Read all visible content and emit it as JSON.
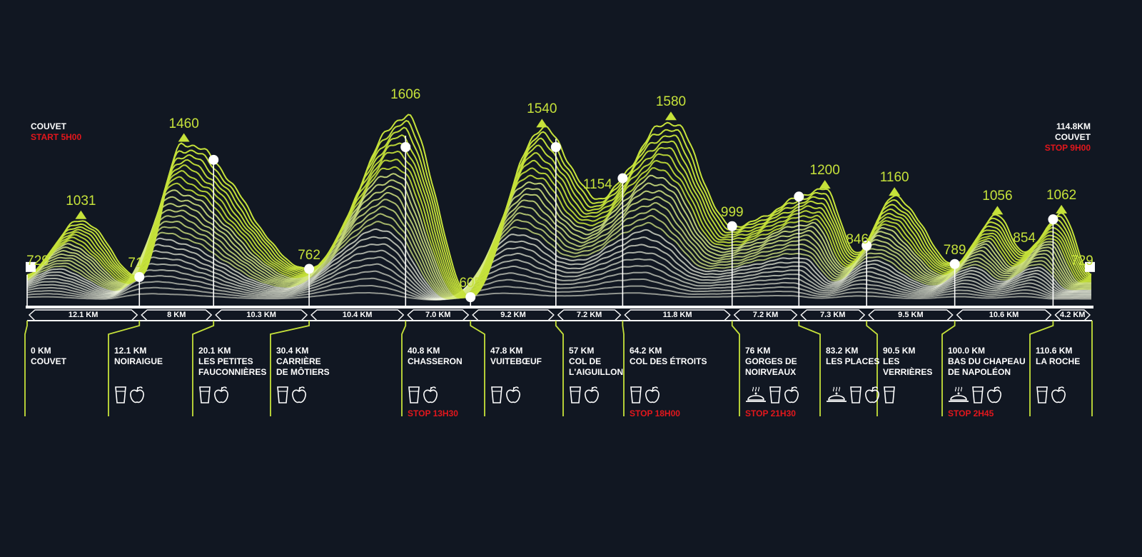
{
  "colors": {
    "background": "#111722",
    "accent": "#c6e23a",
    "line": "#ffffff",
    "stop": "#e3171c"
  },
  "start": {
    "location": "COUVET",
    "time": "START 5H00"
  },
  "finish": {
    "distance": "114.8KM",
    "location": "COUVET",
    "time": "STOP 9H00"
  },
  "chart_data": {
    "type": "area",
    "x_unit": "km",
    "y_unit": "m",
    "peaks": [
      {
        "km": 0.0,
        "elev": 729,
        "label": "729"
      },
      {
        "km": 5.8,
        "elev": 1031,
        "label": "1031"
      },
      {
        "km": 12.1,
        "elev": 717,
        "label": "717"
      },
      {
        "km": 16.9,
        "elev": 1460,
        "label": "1460"
      },
      {
        "km": 30.4,
        "elev": 762,
        "label": "762"
      },
      {
        "km": 40.8,
        "elev": 1606,
        "label": "1606"
      },
      {
        "km": 47.8,
        "elev": 605,
        "label": "605"
      },
      {
        "km": 55.5,
        "elev": 1540,
        "label": "1540"
      },
      {
        "km": 61.5,
        "elev": 1154,
        "label": "1154"
      },
      {
        "km": 69.4,
        "elev": 1580,
        "label": "1580"
      },
      {
        "km": 76.0,
        "elev": 999,
        "label": "999"
      },
      {
        "km": 86.0,
        "elev": 1200,
        "label": "1200"
      },
      {
        "km": 89.5,
        "elev": 846,
        "label": "846"
      },
      {
        "km": 93.5,
        "elev": 1160,
        "label": "1160"
      },
      {
        "km": 100.0,
        "elev": 789,
        "label": "789"
      },
      {
        "km": 104.6,
        "elev": 1056,
        "label": "1056"
      },
      {
        "km": 107.5,
        "elev": 854,
        "label": "854"
      },
      {
        "km": 111.5,
        "elev": 1062,
        "label": "1062"
      },
      {
        "km": 114.8,
        "elev": 729,
        "label": "729"
      }
    ],
    "segments": [
      "12.1 KM",
      "8 KM",
      "10.3 KM",
      "10.4 KM",
      "7.0 KM",
      "9.2 KM",
      "7.2 KM",
      "11.8 KM",
      "7.2 KM",
      "7.3 KM",
      "9.5 KM",
      "10.6 KM",
      "4.2 KM"
    ],
    "stations": [
      {
        "km": 0,
        "lines": [
          "0 KM",
          "COUVET"
        ],
        "icons": [],
        "stop": ""
      },
      {
        "km": 12.1,
        "lines": [
          "12.1 KM",
          "NOIRAIGUE"
        ],
        "icons": [
          "drink-icon",
          "apple-icon"
        ],
        "stop": ""
      },
      {
        "km": 20.1,
        "lines": [
          "20.1 KM",
          "LES PETITES",
          "FAUCONNIÈRES"
        ],
        "icons": [
          "drink-icon",
          "apple-icon"
        ],
        "stop": ""
      },
      {
        "km": 30.4,
        "lines": [
          "30.4 KM",
          "CARRIÈRE",
          "DE MÔTIERS"
        ],
        "icons": [
          "drink-icon",
          "apple-icon"
        ],
        "stop": ""
      },
      {
        "km": 40.8,
        "lines": [
          "40.8 KM",
          "CHASSERON"
        ],
        "icons": [
          "drink-icon",
          "apple-icon"
        ],
        "stop": "STOP 13H30"
      },
      {
        "km": 47.8,
        "lines": [
          "47.8 KM",
          "VUITEBŒUF"
        ],
        "icons": [
          "drink-icon",
          "apple-icon"
        ],
        "stop": ""
      },
      {
        "km": 57,
        "lines": [
          "57 KM",
          "COL DE",
          "L'AIGUILLON"
        ],
        "icons": [
          "drink-icon",
          "apple-icon"
        ],
        "stop": ""
      },
      {
        "km": 64.2,
        "lines": [
          "64.2 KM",
          "COL DES ÉTROITS"
        ],
        "icons": [
          "drink-icon",
          "apple-icon"
        ],
        "stop": "STOP 18H00"
      },
      {
        "km": 76,
        "lines": [
          "76 KM",
          "GORGES DE",
          "NOIRVEAUX"
        ],
        "icons": [
          "meal-icon",
          "drink-icon",
          "apple-icon"
        ],
        "stop": "STOP 21H30"
      },
      {
        "km": 83.2,
        "lines": [
          "83.2 KM",
          "LES PLACES"
        ],
        "icons": [
          "meal-icon",
          "drink-icon",
          "apple-icon"
        ],
        "stop": ""
      },
      {
        "km": 90.5,
        "lines": [
          "90.5 KM",
          "LES",
          "VERRIÈRES"
        ],
        "icons": [
          "drink-icon"
        ],
        "stop": ""
      },
      {
        "km": 100.0,
        "lines": [
          "100.0 KM",
          "BAS DU CHAPEAU",
          "DE NAPOLÉON"
        ],
        "icons": [
          "meal-icon",
          "drink-icon",
          "apple-icon"
        ],
        "stop": "STOP 2H45"
      },
      {
        "km": 110.6,
        "lines": [
          "110.6 KM",
          "LA ROCHE"
        ],
        "icons": [
          "drink-icon",
          "apple-icon"
        ],
        "stop": ""
      }
    ]
  }
}
